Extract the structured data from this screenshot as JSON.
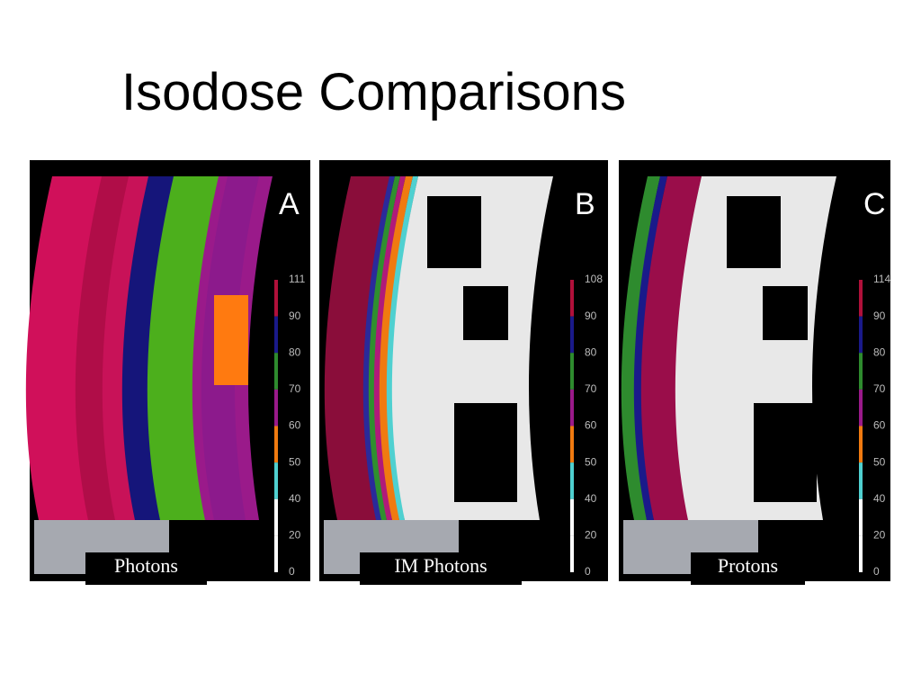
{
  "title": "Isodose Comparisons",
  "panels": [
    {
      "letter": "A",
      "caption": "Photons",
      "scale": [
        "111",
        "90",
        "80",
        "70",
        "60",
        "50",
        "40",
        "20",
        "0"
      ]
    },
    {
      "letter": "B",
      "caption": "IM Photons",
      "scale": [
        "108",
        "90",
        "80",
        "70",
        "60",
        "50",
        "40",
        "20",
        "0"
      ]
    },
    {
      "letter": "C",
      "caption": "Protons",
      "scale": [
        "114",
        "90",
        "80",
        "70",
        "60",
        "50",
        "40",
        "20",
        "0"
      ]
    }
  ]
}
